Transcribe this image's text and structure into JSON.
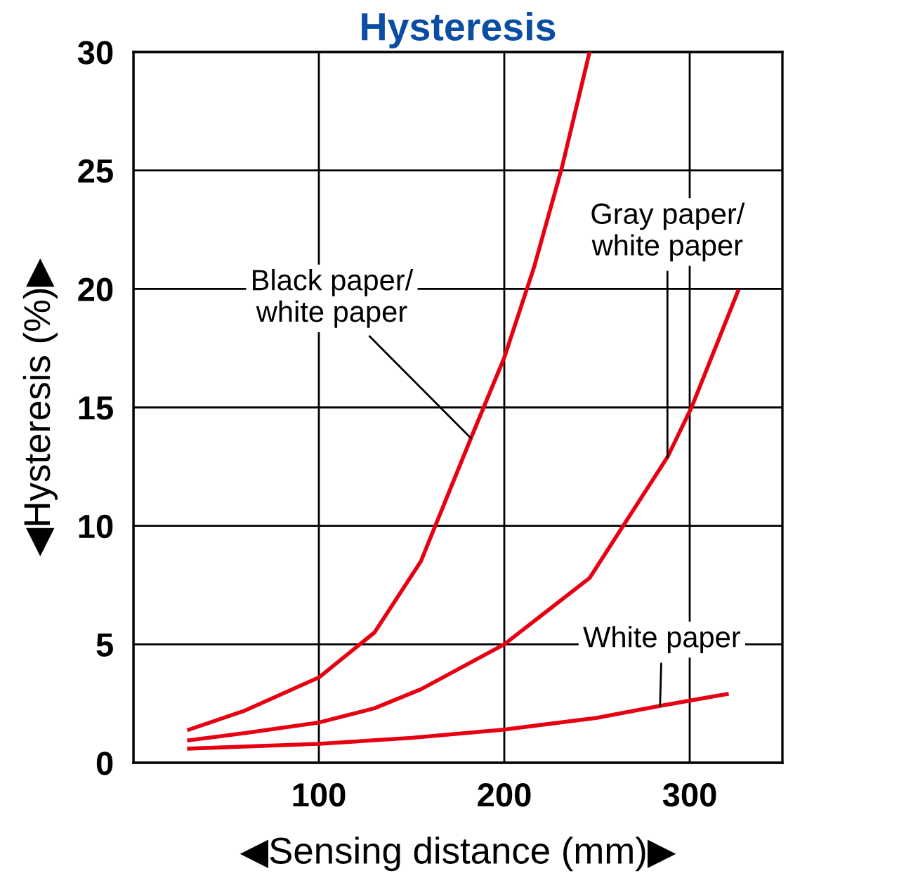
{
  "chart_data": {
    "type": "line",
    "title": "Hysteresis",
    "xlabel": "◀Sensing distance (mm)▶",
    "ylabel": "◀Hysteresis (%)▶",
    "xlim": [
      0,
      350
    ],
    "xticks": [
      {
        "value": 0,
        "label": null
      },
      100,
      200,
      300
    ],
    "ylim": [
      0,
      30
    ],
    "yticks": [
      0,
      5,
      10,
      15,
      20,
      25,
      30
    ],
    "grid": true,
    "marker": "none",
    "line_style": "solid",
    "series": [
      {
        "color": "#e60012",
        "x": [
          30,
          60,
          100,
          130,
          155,
          182,
          200,
          216,
          231,
          246
        ],
        "values": [
          1.4,
          2.2,
          3.6,
          5.5,
          8.5,
          13.7,
          17.1,
          20.9,
          25.1,
          30
        ]
      },
      {
        "color": "#e60012",
        "x": [
          30,
          60,
          100,
          130,
          155,
          200,
          246,
          288,
          301,
          326
        ],
        "values": [
          0.95,
          1.25,
          1.7,
          2.3,
          3.1,
          5.0,
          7.8,
          12.9,
          15,
          19.9
        ]
      },
      {
        "color": "#e60012",
        "x": [
          30,
          100,
          150,
          200,
          250,
          284,
          320
        ],
        "values": [
          0.6,
          0.8,
          1.05,
          1.4,
          1.9,
          2.4,
          2.9
        ]
      }
    ],
    "annotations": [
      {
        "text": "Black paper/\nwhite paper",
        "x": 182,
        "y": 13.7
      },
      {
        "text": "Gray paper/\nwhite paper",
        "x": 288,
        "y": 12.9
      },
      {
        "text": "White paper",
        "x": 284,
        "y": 2.4
      }
    ]
  }
}
